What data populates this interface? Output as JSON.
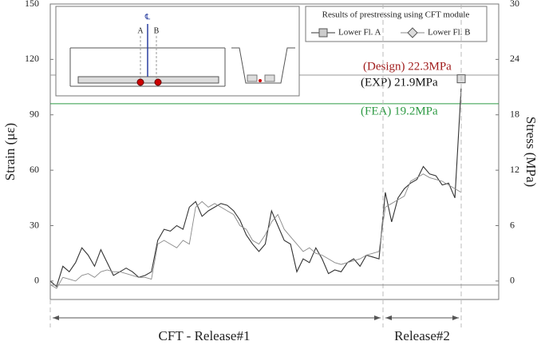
{
  "chart_data": {
    "type": "line",
    "ylabel": "Strain (με)",
    "y2label": "Stress (MPa)",
    "ylim": [
      -10,
      150
    ],
    "yticks": [
      0,
      30,
      60,
      90,
      120,
      150
    ],
    "y2lim": [
      -2,
      30
    ],
    "y2ticks": [
      0,
      6,
      12,
      18,
      24,
      30
    ],
    "legend_title": "Results of prestressing using CFT module",
    "series": [
      {
        "name": "Lower Fl. A",
        "color": "#333333",
        "marker": "square",
        "values": [
          0,
          -3,
          8,
          5,
          10,
          18,
          14,
          8,
          17,
          10,
          3,
          5,
          7,
          5,
          2,
          3,
          5,
          22,
          28,
          27,
          30,
          28,
          40,
          43,
          35,
          38,
          40,
          42,
          41,
          38,
          33,
          25,
          20,
          16,
          20,
          38,
          30,
          22,
          20,
          5,
          12,
          10,
          18,
          12,
          4,
          6,
          5,
          10,
          12,
          8,
          14,
          13,
          12,
          48,
          32,
          45,
          50,
          53,
          55,
          62,
          58,
          57,
          52,
          53,
          45,
          105
        ]
      },
      {
        "name": "Lower Fl. B",
        "color": "#8a8a8a",
        "marker": "diamond",
        "values": [
          -2,
          -4,
          2,
          1,
          0,
          3,
          4,
          2,
          5,
          6,
          5,
          5,
          4,
          3,
          2,
          2,
          1,
          20,
          22,
          20,
          18,
          22,
          20,
          40,
          43,
          40,
          42,
          40,
          38,
          36,
          30,
          28,
          22,
          20,
          25,
          32,
          36,
          28,
          24,
          20,
          16,
          18,
          15,
          14,
          12,
          10,
          9,
          10,
          11,
          12,
          14,
          15,
          16,
          40,
          42,
          44,
          46,
          54,
          56,
          58,
          56,
          55,
          54,
          52,
          50,
          48
        ]
      }
    ],
    "annotations": [
      {
        "text": "(Design) 22.3MPa",
        "value": 22.3,
        "color": "#a01c1c",
        "line_color": "#9a9a9a"
      },
      {
        "text": "(EXP) 21.9MPa",
        "value": 21.9,
        "color": "#111111"
      },
      {
        "text": "(FEA) 19.2MPa",
        "value": 19.2,
        "color": "#2e9a44",
        "line_color": "#2e9a44"
      }
    ],
    "phases": [
      "CFT - Release#1",
      "Release#2"
    ],
    "inset": {
      "centerline": "℄",
      "point_a": "A",
      "point_b": "B"
    }
  }
}
